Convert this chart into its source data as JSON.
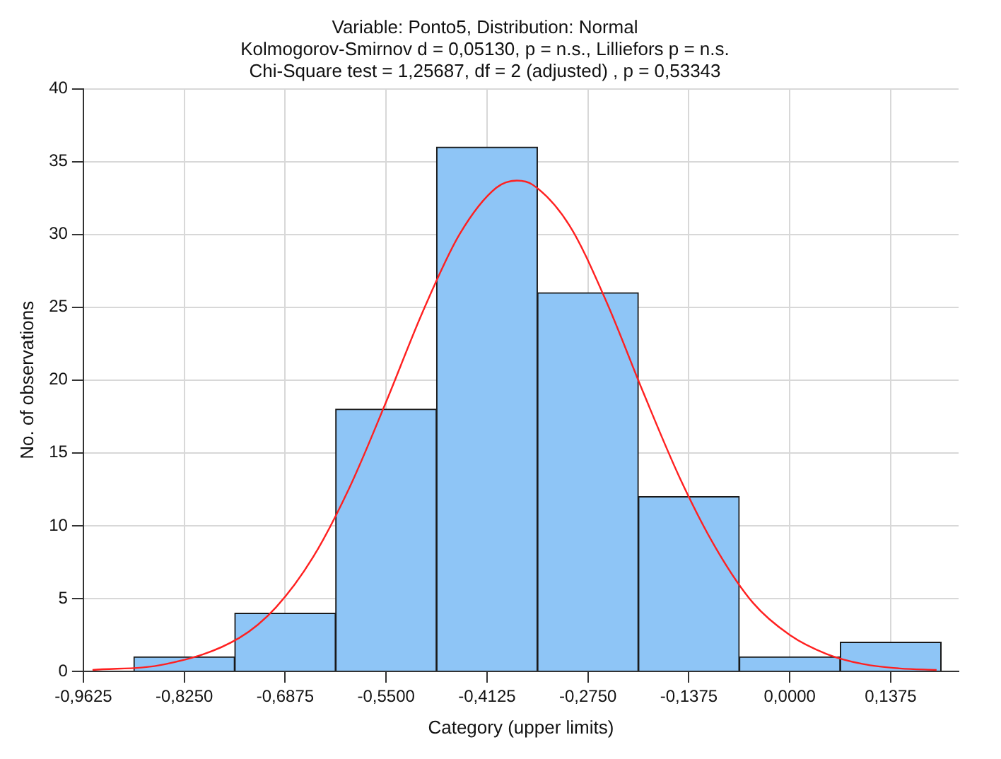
{
  "chart_data": {
    "type": "histogram",
    "title": [
      "Variable: Ponto5, Distribution: Normal",
      "Kolmogorov-Smirnov d = 0,05130, p = n.s., Lilliefors p = n.s.",
      "Chi-Square test = 1,25687, df = 2 (adjusted) , p = 0,53343"
    ],
    "xlabel": "Category (upper limits)",
    "ylabel": "No. of observations",
    "bins": [
      -0.89375,
      -0.75625,
      -0.61875,
      -0.48125,
      -0.34375,
      -0.20625,
      -0.06875,
      0.06875,
      0.20625
    ],
    "series": [
      {
        "color": "#8ec5f6",
        "values": [
          1,
          4,
          18,
          36,
          26,
          12,
          1,
          2
        ]
      },
      {
        "type": "line",
        "color": "#ff2020",
        "x": [
          -0.95,
          -0.85,
          -0.75,
          -0.7,
          -0.65,
          -0.6,
          -0.55,
          -0.5,
          -0.45,
          -0.4,
          -0.372,
          -0.35,
          -0.3,
          -0.25,
          -0.2,
          -0.15,
          -0.1,
          -0.05,
          0,
          0.05,
          0.1,
          0.15,
          0.2
        ],
        "values": [
          0.1,
          0.5,
          2.3,
          4.4,
          7.8,
          12.6,
          18.5,
          24.7,
          30,
          33.2,
          33.7,
          33.4,
          30.6,
          25.4,
          19.2,
          13.3,
          8.4,
          4.7,
          2.5,
          1.2,
          0.5,
          0.2,
          0.1
        ]
      }
    ],
    "marker": "none",
    "line_style": "solid",
    "grid": true,
    "legend": false,
    "xlim": [
      -0.9625,
      0.23
    ],
    "xticks": [
      {
        "value": -0.9625,
        "label": "-0,9625"
      },
      {
        "value": -0.825,
        "label": "-0,8250"
      },
      {
        "value": -0.6875,
        "label": "-0,6875"
      },
      {
        "value": -0.55,
        "label": "-0,5500"
      },
      {
        "value": -0.4125,
        "label": "-0,4125"
      },
      {
        "value": -0.275,
        "label": "-0,2750"
      },
      {
        "value": -0.1375,
        "label": "-0,1375"
      },
      {
        "value": 0,
        "label": "0,0000"
      },
      {
        "value": 0.1375,
        "label": "0,1375"
      }
    ],
    "ylim": [
      0,
      40
    ],
    "yticks": [
      0,
      5,
      10,
      15,
      20,
      25,
      30,
      35,
      40
    ]
  }
}
